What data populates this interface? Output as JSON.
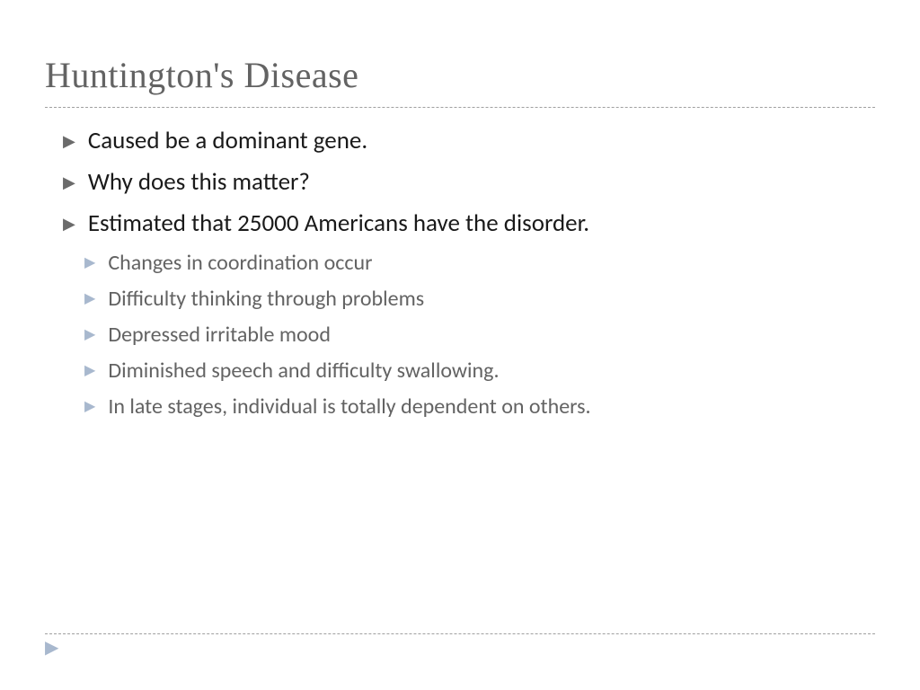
{
  "slide": {
    "title": "Huntington's Disease",
    "main_bullets": [
      {
        "text": "Caused be a dominant gene."
      },
      {
        "text": "Why does this matter?"
      },
      {
        "text": "Estimated that 25000 Americans have the disorder."
      }
    ],
    "sub_bullets": [
      {
        "text": "Changes in coordination occur"
      },
      {
        "text": "Difficulty thinking through problems"
      },
      {
        "text": "Depressed irritable mood"
      },
      {
        "text": "Diminished speech and difficulty swallowing."
      },
      {
        "text": "In late stages, individual is totally dependent on others."
      }
    ],
    "colors": {
      "title_color": "#636363",
      "main_text_color": "#1a1a1a",
      "sub_text_color": "#636363",
      "main_bullet_color": "#6b6b6b",
      "sub_bullet_color": "#a8b8ce",
      "divider_color": "#a0a0a0",
      "background": "#ffffff"
    },
    "typography": {
      "title_font": "Georgia serif",
      "title_size_pt": 40,
      "body_font": "Gill Sans",
      "main_size_pt": 27,
      "sub_size_pt": 24
    }
  }
}
